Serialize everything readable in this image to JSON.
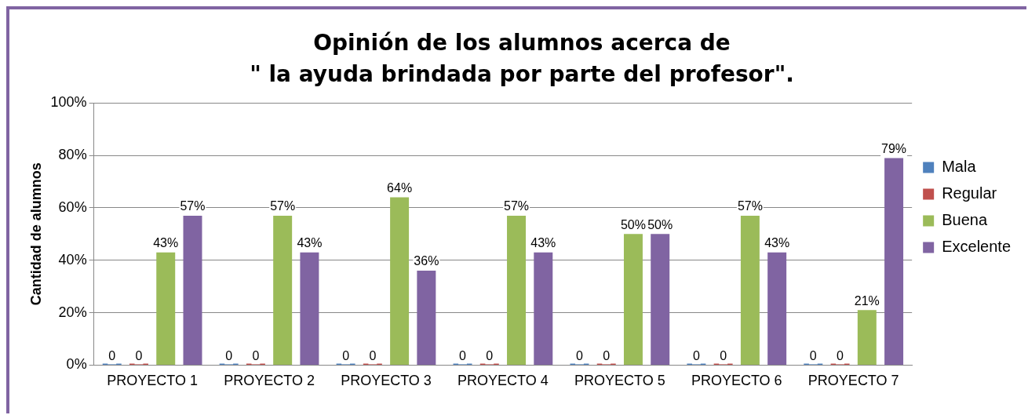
{
  "chart_data": {
    "type": "bar",
    "title": "Opinión de los alumnos acerca de\n\" la ayuda brindada por parte del profesor\".",
    "ylabel": "Cantidad de alumnos",
    "categories": [
      "PROYECTO 1",
      "PROYECTO 2",
      "PROYECTO 3",
      "PROYECTO 4",
      "PROYECTO 5",
      "PROYECTO 6",
      "PROYECTO 7"
    ],
    "series": [
      {
        "name": "Mala",
        "color": "#4f81bd",
        "values": [
          0,
          0,
          0,
          0,
          0,
          0,
          0
        ],
        "value_labels": [
          "0",
          "0",
          "0",
          "0",
          "0",
          "0",
          "0"
        ]
      },
      {
        "name": "Regular",
        "color": "#c0504d",
        "values": [
          0,
          0,
          0,
          0,
          0,
          0,
          0
        ],
        "value_labels": [
          "0",
          "0",
          "0",
          "0",
          "0",
          "0",
          "0"
        ]
      },
      {
        "name": "Buena",
        "color": "#9bbb59",
        "values": [
          43,
          57,
          64,
          57,
          50,
          57,
          21
        ],
        "value_labels": [
          "43%",
          "57%",
          "64%",
          "57%",
          "50%",
          "57%",
          "21%"
        ]
      },
      {
        "name": "Excelente",
        "color": "#8064a2",
        "values": [
          57,
          43,
          36,
          43,
          50,
          43,
          79
        ],
        "value_labels": [
          "57%",
          "43%",
          "36%",
          "43%",
          "50%",
          "43%",
          "79%"
        ]
      }
    ],
    "ylim": [
      0,
      100
    ],
    "yticks": [
      {
        "value": 0,
        "label": "0%"
      },
      {
        "value": 20,
        "label": "20%"
      },
      {
        "value": 40,
        "label": "40%"
      },
      {
        "value": 60,
        "label": "60%"
      },
      {
        "value": 80,
        "label": "80%"
      },
      {
        "value": 100,
        "label": "100%"
      }
    ],
    "grid": "y",
    "legend": "right"
  }
}
